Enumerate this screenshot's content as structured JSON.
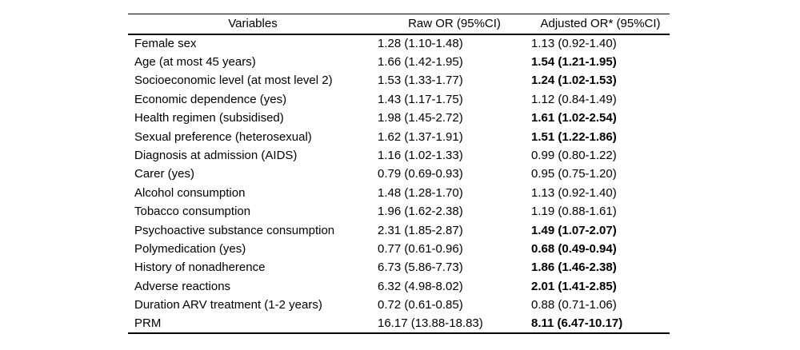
{
  "table": {
    "columns": [
      {
        "label": "Variables"
      },
      {
        "label": "Raw OR (95%CI)"
      },
      {
        "label": "Adjusted OR* (95%CI)"
      }
    ],
    "rows": [
      {
        "variable": "Female sex",
        "raw_or": "1.28 (1.10-1.48)",
        "adjusted_or": "1.13 (0.92-1.40)",
        "adjusted_bold": false
      },
      {
        "variable": "Age (at most 45 years)",
        "raw_or": "1.66 (1.42-1.95)",
        "adjusted_or": "1.54 (1.21-1.95)",
        "adjusted_bold": true
      },
      {
        "variable": "Socioeconomic level (at most level 2)",
        "raw_or": "1.53 (1.33-1.77)",
        "adjusted_or": "1.24 (1.02-1.53)",
        "adjusted_bold": true
      },
      {
        "variable": "Economic dependence (yes)",
        "raw_or": "1.43 (1.17-1.75)",
        "adjusted_or": "1.12 (0.84-1.49)",
        "adjusted_bold": false
      },
      {
        "variable": "Health regimen (subsidised)",
        "raw_or": "1.98 (1.45-2.72)",
        "adjusted_or": "1.61 (1.02-2.54)",
        "adjusted_bold": true
      },
      {
        "variable": "Sexual preference (heterosexual)",
        "raw_or": "1.62 (1.37-1.91)",
        "adjusted_or": "1.51 (1.22-1.86)",
        "adjusted_bold": true
      },
      {
        "variable": "Diagnosis at admission (AIDS)",
        "raw_or": "1.16 (1.02-1.33)",
        "adjusted_or": "0.99 (0.80-1.22)",
        "adjusted_bold": false
      },
      {
        "variable": "Carer (yes)",
        "raw_or": "0.79 (0.69-0.93)",
        "adjusted_or": "0.95 (0.75-1.20)",
        "adjusted_bold": false
      },
      {
        "variable": "Alcohol consumption",
        "raw_or": "1.48 (1.28-1.70)",
        "adjusted_or": "1.13 (0.92-1.40)",
        "adjusted_bold": false
      },
      {
        "variable": "Tobacco consumption",
        "raw_or": "1.96 (1.62-2.38)",
        "adjusted_or": "1.19 (0.88-1.61)",
        "adjusted_bold": false
      },
      {
        "variable": "Psychoactive substance consumption",
        "raw_or": "2.31 (1.85-2.87)",
        "adjusted_or": "1.49 (1.07-2.07)",
        "adjusted_bold": true
      },
      {
        "variable": "Polymedication (yes)",
        "raw_or": "0.77 (0.61-0.96)",
        "adjusted_or": "0.68 (0.49-0.94)",
        "adjusted_bold": true
      },
      {
        "variable": "History of nonadherence",
        "raw_or": "6.73 (5.86-7.73)",
        "adjusted_or": "1.86 (1.46-2.38)",
        "adjusted_bold": true
      },
      {
        "variable": "Adverse reactions",
        "raw_or": "6.32 (4.98-8.02)",
        "adjusted_or": "2.01 (1.41-2.85)",
        "adjusted_bold": true
      },
      {
        "variable": "Duration ARV treatment (1-2 years)",
        "raw_or": "0.72 (0.61-0.85)",
        "adjusted_or": "0.88 (0.71-1.06)",
        "adjusted_bold": false
      },
      {
        "variable": "PRM",
        "raw_or": "16.17 (13.88-18.83)",
        "adjusted_or": "8.11 (6.47-10.17)",
        "adjusted_bold": true
      }
    ]
  }
}
